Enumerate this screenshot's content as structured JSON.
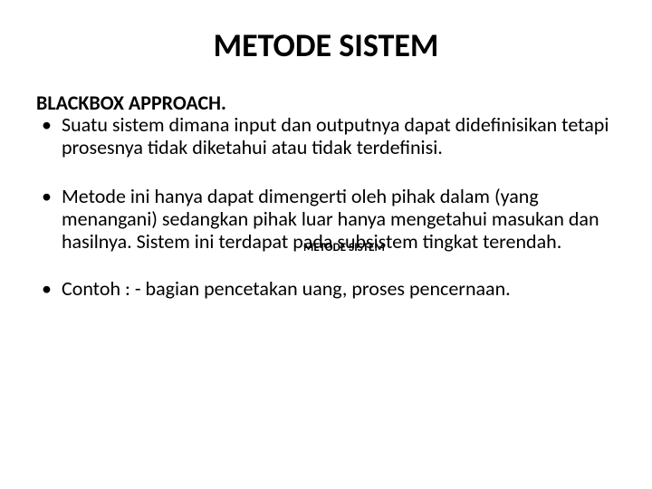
{
  "title": "METODE SISTEM",
  "subheading": "BLACKBOX APPROACH.",
  "midLabel": "METODE SISTEM",
  "bullets": {
    "b1": "Suatu sistem dimana input dan outputnya dapat didefinisikan tetapi prosesnya tidak diketahui atau tidak terdefinisi.",
    "b2": "Metode ini hanya dapat dimengerti oleh pihak dalam (yang menangani) sedangkan pihak luar hanya mengetahui masukan dan hasilnya. Sistem ini terdapat pada subsistem tingkat terendah.",
    "b3": "Contoh : - bagian pencetakan uang, proses pencernaan."
  }
}
